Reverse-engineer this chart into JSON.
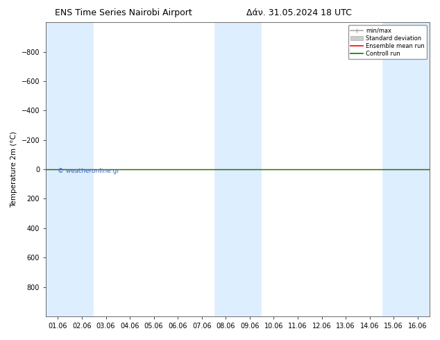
{
  "title": "ENS Time Series Nairobi Airport",
  "title2": "Δάν. 31.05.2024 18 UTC",
  "ylabel": "Temperature 2m (°C)",
  "xlabel_ticks": [
    "01.06",
    "02.06",
    "03.06",
    "04.06",
    "05.06",
    "06.06",
    "07.06",
    "08.06",
    "09.06",
    "10.06",
    "11.06",
    "12.06",
    "13.06",
    "14.06",
    "15.06",
    "16.06"
  ],
  "x_values": [
    0,
    1,
    2,
    3,
    4,
    5,
    6,
    7,
    8,
    9,
    10,
    11,
    12,
    13,
    14,
    15
  ],
  "ylim": [
    -1000,
    1000
  ],
  "yticks": [
    -800,
    -600,
    -400,
    -200,
    0,
    200,
    400,
    600,
    800
  ],
  "background_color": "#ffffff",
  "plot_bg_color": "#ddeeff",
  "shaded_color": "#ddeeff",
  "white_color": "#ffffff",
  "green_line_y": 0,
  "green_line_color": "#008000",
  "red_line_color": "#ff0000",
  "watermark_text": "© weatheronline.gr",
  "watermark_color": "#4466cc",
  "legend_items": [
    "min/max",
    "Standard deviation",
    "Ensemble mean run",
    "Controll run"
  ],
  "legend_colors_line": [
    "#aaaaaa",
    "#cccccc",
    "#ff0000",
    "#008000"
  ],
  "font_color": "#000000",
  "tick_font_size": 7,
  "title_font_size": 9,
  "axis_label_font_size": 7.5
}
